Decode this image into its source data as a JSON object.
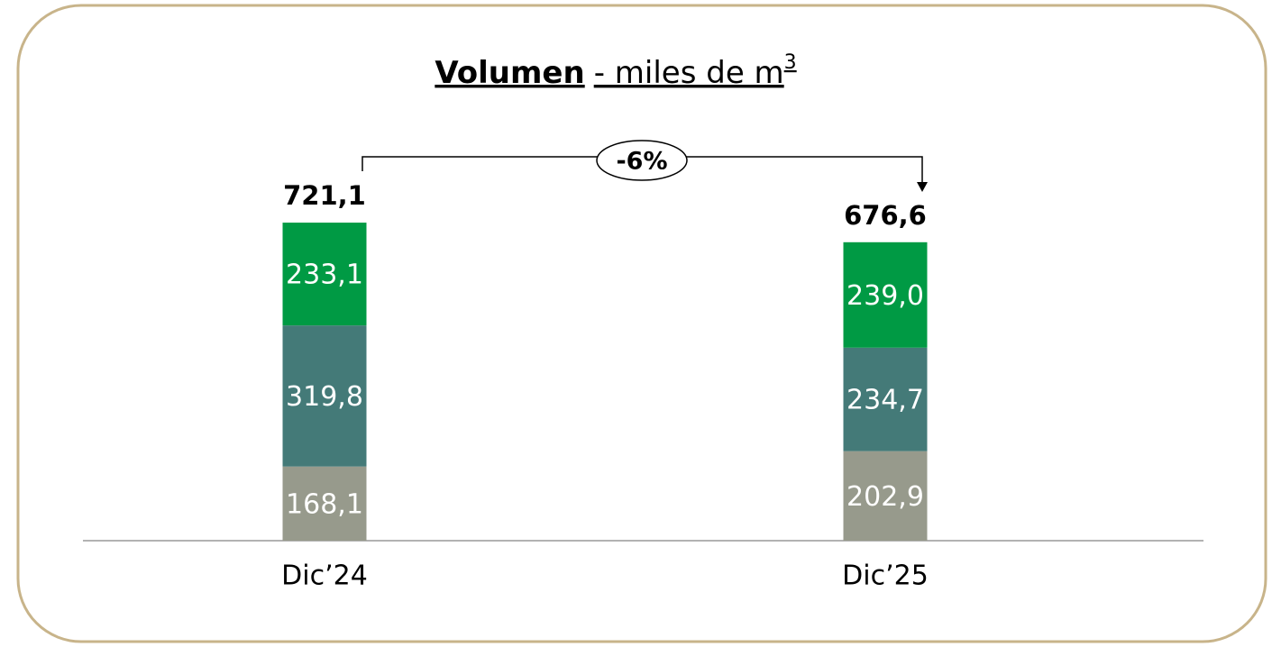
{
  "chart_data": {
    "type": "stacked_bar",
    "title": [
      "Volumen",
      "- miles de m",
      "3"
    ],
    "categories": [
      "Dic’24",
      "Dic’25"
    ],
    "series": [
      {
        "color": "#979a8c",
        "values": [
          168.1,
          202.9
        ],
        "value_labels": [
          "168,1",
          "202,9"
        ]
      },
      {
        "color": "#447a78",
        "values": [
          319.8,
          234.7
        ],
        "value_labels": [
          "319,8",
          "234,7"
        ]
      },
      {
        "color": "#009a44",
        "values": [
          233.1,
          239.0
        ],
        "value_labels": [
          "233,1",
          "239,0"
        ]
      }
    ],
    "totals": [
      721.1,
      676.6
    ],
    "total_labels": [
      "721,1",
      "676,6"
    ],
    "change": {
      "value": -6,
      "label": "-6%"
    }
  }
}
